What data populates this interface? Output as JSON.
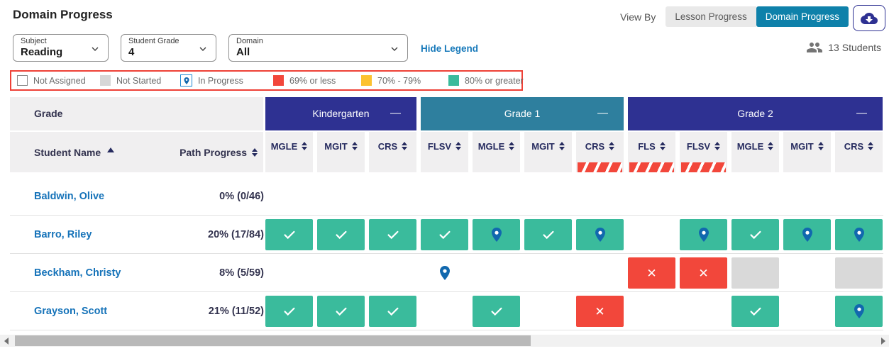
{
  "header": {
    "title": "Domain Progress",
    "view_by_label": "View By",
    "toggles": [
      {
        "label": "Lesson Progress",
        "active": false
      },
      {
        "label": "Domain Progress",
        "active": true
      }
    ],
    "download_icon": "cloud-download-icon"
  },
  "filters": {
    "subject": {
      "label": "Subject",
      "value": "Reading"
    },
    "student_grade": {
      "label": "Student Grade",
      "value": "4"
    },
    "domain": {
      "label": "Domain",
      "value": "All"
    },
    "hide_legend_label": "Hide Legend",
    "students_count": "13 Students"
  },
  "legend": {
    "items": [
      {
        "label": "Not Assigned",
        "type": "not-assigned"
      },
      {
        "label": "Not Started",
        "type": "not-started"
      },
      {
        "label": "In Progress",
        "type": "in-progress"
      },
      {
        "label": "69% or less",
        "type": "red"
      },
      {
        "label": "70% - 79%",
        "type": "yellow"
      },
      {
        "label": "80% or greater",
        "type": "teal"
      }
    ]
  },
  "table": {
    "grade_label": "Grade",
    "student_name_label": "Student Name",
    "path_progress_label": "Path Progress",
    "grade_groups": [
      {
        "label": "Kindergarten",
        "collapse_label": "—",
        "color": "#2e3192",
        "columns": [
          {
            "code": "MGLE",
            "flagged": false
          },
          {
            "code": "MGIT",
            "flagged": false
          },
          {
            "code": "CRS",
            "flagged": false
          }
        ]
      },
      {
        "label": "Grade 1",
        "collapse_label": "—",
        "color": "#2e7f9e",
        "columns": [
          {
            "code": "FLSV",
            "flagged": false
          },
          {
            "code": "MGLE",
            "flagged": false
          },
          {
            "code": "MGIT",
            "flagged": false
          },
          {
            "code": "CRS",
            "flagged": true
          }
        ]
      },
      {
        "label": "Grade 2",
        "collapse_label": "—",
        "color": "#2e3192",
        "columns": [
          {
            "code": "FLS",
            "flagged": true
          },
          {
            "code": "FLSV",
            "flagged": true
          },
          {
            "code": "MGLE",
            "flagged": false
          },
          {
            "code": "MGIT",
            "flagged": false
          },
          {
            "code": "CRS",
            "flagged": false
          }
        ]
      }
    ],
    "rows": [
      {
        "name": "Baldwin, Olive",
        "path_progress": "0% (0/46)",
        "cells": [
          "empty",
          "empty",
          "empty",
          "empty",
          "empty",
          "empty",
          "empty",
          "empty",
          "empty",
          "empty",
          "empty",
          "empty"
        ]
      },
      {
        "name": "Barro, Riley",
        "path_progress": "20% (17/84)",
        "cells": [
          "check",
          "check",
          "check",
          "check",
          "pin-teal",
          "check",
          "pin-teal",
          "empty",
          "pin-teal",
          "check",
          "pin-teal",
          "pin-teal"
        ]
      },
      {
        "name": "Beckham, Christy",
        "path_progress": "8% (5/59)",
        "cells": [
          "empty",
          "empty",
          "empty",
          "pin",
          "empty",
          "empty",
          "empty",
          "x",
          "x",
          "gray",
          "empty",
          "gray"
        ]
      },
      {
        "name": "Grayson, Scott",
        "path_progress": "21% (11/52)",
        "cells": [
          "check",
          "check",
          "check",
          "empty",
          "check",
          "empty",
          "x",
          "empty",
          "empty",
          "check",
          "empty",
          "pin-teal"
        ]
      }
    ]
  },
  "colors": {
    "navy": "#2e3192",
    "teal_group_header": "#2e7f9e",
    "cell_teal": "#3abb9c",
    "cell_red": "#f2473b",
    "cell_gray": "#d9d9d9",
    "legend_yellow": "#fcc230",
    "legend_border_red": "#ee4036",
    "link_blue": "#1779ba",
    "toggle_active": "#0e81aa",
    "pin_blue": "#1168ae"
  }
}
